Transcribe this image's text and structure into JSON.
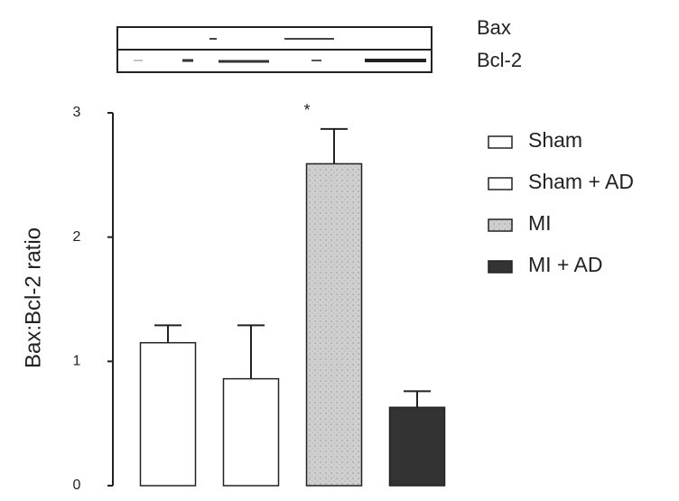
{
  "chart_data": {
    "type": "bar",
    "blot_labels": [
      "Bax",
      "Bcl-2"
    ],
    "y_label": "Bax:Bcl-2 ratio",
    "annotation": "*",
    "categories": [
      null
    ],
    "series": [
      {
        "name": "Sham",
        "color": "#ffffff",
        "values": [
          1.15
        ],
        "errors": [
          0.14
        ]
      },
      {
        "name": "Sham + AD",
        "color": "#ffffff",
        "values": [
          0.86
        ],
        "errors": [
          0.43
        ]
      },
      {
        "name": "MI",
        "color": "#cfcfcf",
        "values": [
          2.59
        ],
        "errors": [
          0.28
        ]
      },
      {
        "name": "MI + AD",
        "color": "#333333",
        "values": [
          0.63
        ],
        "errors": [
          0.13
        ]
      }
    ],
    "ylim": [
      0,
      3
    ],
    "yticks": [
      0,
      1,
      2,
      3
    ],
    "grid": false
  }
}
